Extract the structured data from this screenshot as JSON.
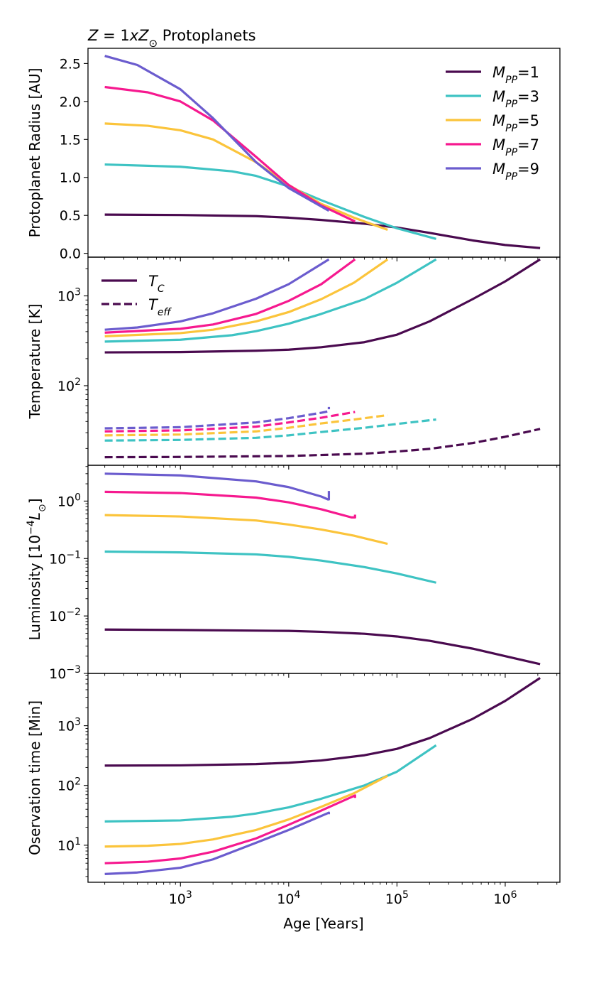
{
  "figure": {
    "title": "Z = 1xZ⊙ Protoplanets",
    "title_parts": {
      "z": "Z",
      "eq": " = 1",
      "x": "x",
      "zsun": "Z",
      "sun": "⊙",
      "rest": " Protoplanets"
    },
    "xlabel": "Age [Years]",
    "x_scale": "log",
    "xlim": [
      140,
      3200000
    ],
    "x_ticks": [
      1000,
      10000,
      100000,
      1000000
    ],
    "x_tick_labels": [
      {
        "base": "10",
        "exp": "3"
      },
      {
        "base": "10",
        "exp": "4"
      },
      {
        "base": "10",
        "exp": "5"
      },
      {
        "base": "10",
        "exp": "6"
      }
    ]
  },
  "colors": {
    "M1": "#4a0a4f",
    "M3": "#3ec3c3",
    "M5": "#fbc43b",
    "M7": "#f6198f",
    "M9": "#6b5cce"
  },
  "chart_data": [
    {
      "type": "line",
      "id": "radius",
      "ylabel": "Protoplanet Radius [AU]",
      "y_scale": "linear",
      "ylim": [
        -0.05,
        2.7
      ],
      "y_ticks": [
        0.0,
        0.5,
        1.0,
        1.5,
        2.0,
        2.5
      ],
      "y_tick_labels": [
        "0.0",
        "0.5",
        "1.0",
        "1.5",
        "2.0",
        "2.5"
      ],
      "legend": {
        "placement": "top-right",
        "entries": [
          {
            "label_base": "M",
            "label_sub": "PP",
            "label_val": "=1",
            "color_key": "M1"
          },
          {
            "label_base": "M",
            "label_sub": "PP",
            "label_val": "=3",
            "color_key": "M3"
          },
          {
            "label_base": "M",
            "label_sub": "PP",
            "label_val": "=5",
            "color_key": "M5"
          },
          {
            "label_base": "M",
            "label_sub": "PP",
            "label_val": "=7",
            "color_key": "M7"
          },
          {
            "label_base": "M",
            "label_sub": "PP",
            "label_val": "=9",
            "color_key": "M9"
          }
        ]
      },
      "series": [
        {
          "name": "M_PP=1",
          "color_key": "M1",
          "style": "solid",
          "x": [
            200,
            1000,
            5000,
            10000,
            20000,
            50000,
            100000,
            200000,
            500000,
            1000000,
            2100000
          ],
          "y": [
            0.51,
            0.505,
            0.49,
            0.47,
            0.44,
            0.39,
            0.34,
            0.27,
            0.17,
            0.11,
            0.07
          ]
        },
        {
          "name": "M_PP=3",
          "color_key": "M3",
          "style": "solid",
          "x": [
            200,
            1000,
            3000,
            5000,
            10000,
            20000,
            50000,
            100000,
            230000
          ],
          "y": [
            1.17,
            1.14,
            1.08,
            1.02,
            0.88,
            0.7,
            0.48,
            0.33,
            0.19
          ]
        },
        {
          "name": "M_PP=5",
          "color_key": "M5",
          "style": "solid",
          "x": [
            200,
            500,
            1000,
            2000,
            5000,
            10000,
            20000,
            40000,
            82000
          ],
          "y": [
            1.71,
            1.68,
            1.62,
            1.5,
            1.2,
            0.9,
            0.65,
            0.47,
            0.31
          ]
        },
        {
          "name": "M_PP=7",
          "color_key": "M7",
          "style": "solid",
          "x": [
            200,
            500,
            1000,
            2000,
            5000,
            10000,
            20000,
            41000
          ],
          "y": [
            2.19,
            2.12,
            2.0,
            1.75,
            1.27,
            0.9,
            0.63,
            0.42
          ]
        },
        {
          "name": "M_PP=9",
          "color_key": "M9",
          "style": "solid",
          "x": [
            200,
            400,
            1000,
            2000,
            5000,
            10000,
            23500
          ],
          "y": [
            2.6,
            2.48,
            2.16,
            1.78,
            1.2,
            0.86,
            0.56
          ]
        }
      ]
    },
    {
      "type": "line",
      "id": "temperature",
      "ylabel": "Temperature [K]",
      "y_scale": "log",
      "ylim": [
        13,
        2700
      ],
      "y_ticks": [
        100,
        1000
      ],
      "y_tick_labels": [
        {
          "base": "10",
          "exp": "2"
        },
        {
          "base": "10",
          "exp": "3"
        }
      ],
      "legend": {
        "placement": "top-left",
        "entries": [
          {
            "label_base": "T",
            "label_sub": "C",
            "style": "solid"
          },
          {
            "label_base": "T",
            "label_sub": "eff",
            "style": "dashed"
          }
        ]
      },
      "series": [
        {
          "name": "T_C M_PP=1",
          "color_key": "M1",
          "style": "solid",
          "x": [
            200,
            1000,
            5000,
            10000,
            20000,
            50000,
            100000,
            200000,
            500000,
            1000000,
            2100000
          ],
          "y": [
            235,
            237,
            245,
            252,
            268,
            305,
            370,
            520,
            920,
            1450,
            2550
          ]
        },
        {
          "name": "T_C M_PP=3",
          "color_key": "M3",
          "style": "solid",
          "x": [
            200,
            1000,
            3000,
            5000,
            10000,
            20000,
            50000,
            100000,
            230000
          ],
          "y": [
            310,
            325,
            365,
            405,
            490,
            630,
            920,
            1400,
            2550
          ]
        },
        {
          "name": "T_C M_PP=5",
          "color_key": "M5",
          "style": "solid",
          "x": [
            200,
            1000,
            2000,
            5000,
            10000,
            20000,
            40000,
            82000
          ],
          "y": [
            355,
            385,
            420,
            520,
            660,
            920,
            1400,
            2550
          ]
        },
        {
          "name": "T_C M_PP=7",
          "color_key": "M7",
          "style": "solid",
          "x": [
            200,
            1000,
            2000,
            5000,
            10000,
            20000,
            41000
          ],
          "y": [
            390,
            430,
            480,
            630,
            880,
            1350,
            2550
          ]
        },
        {
          "name": "T_C M_PP=9",
          "color_key": "M9",
          "style": "solid",
          "x": [
            200,
            400,
            1000,
            2000,
            5000,
            10000,
            23500
          ],
          "y": [
            420,
            445,
            520,
            640,
            930,
            1350,
            2550
          ]
        },
        {
          "name": "T_eff M_PP=1",
          "color_key": "M1",
          "style": "dashed",
          "x": [
            200,
            1000,
            10000,
            50000,
            100000,
            200000,
            500000,
            1000000,
            2100000
          ],
          "y": [
            16.0,
            16.1,
            16.5,
            17.5,
            18.5,
            19.8,
            23,
            27,
            33
          ]
        },
        {
          "name": "T_eff M_PP=3",
          "color_key": "M3",
          "style": "dashed",
          "x": [
            200,
            1000,
            5000,
            10000,
            20000,
            50000,
            100000,
            230000
          ],
          "y": [
            24.5,
            24.9,
            26.3,
            28,
            30.5,
            34,
            37.5,
            42
          ]
        },
        {
          "name": "T_eff M_PP=5",
          "color_key": "M5",
          "style": "dashed",
          "x": [
            200,
            1000,
            5000,
            10000,
            20000,
            40000,
            82000
          ],
          "y": [
            28,
            28.6,
            31,
            34,
            38,
            42,
            47
          ]
        },
        {
          "name": "T_eff M_PP=7",
          "color_key": "M7",
          "style": "dashed",
          "x": [
            200,
            1000,
            5000,
            10000,
            20000,
            41000
          ],
          "y": [
            31,
            31.8,
            35,
            39,
            44,
            51
          ]
        },
        {
          "name": "T_eff M_PP=9",
          "color_key": "M9",
          "style": "dashed",
          "x": [
            200,
            1000,
            5000,
            10000,
            20000,
            23500,
            23500
          ],
          "y": [
            33.5,
            34.5,
            39,
            43.5,
            50,
            52,
            58
          ]
        }
      ]
    },
    {
      "type": "line",
      "id": "luminosity",
      "ylabel": "Luminosity [10⁻⁴L⊙]",
      "ylabel_parts": {
        "pre": "Luminosity [10",
        "exp": "−4",
        "l": "L",
        "sun": "⊙",
        "post": "]"
      },
      "y_scale": "log",
      "ylim": [
        0.001,
        4.2
      ],
      "y_ticks": [
        0.001,
        0.01,
        0.1,
        1
      ],
      "y_tick_labels": [
        {
          "base": "10",
          "exp": "−3"
        },
        {
          "base": "10",
          "exp": "−2"
        },
        {
          "base": "10",
          "exp": "−1"
        },
        {
          "base": "10",
          "exp": "0"
        }
      ],
      "series": [
        {
          "name": "M_PP=1",
          "color_key": "M1",
          "style": "solid",
          "x": [
            200,
            1000,
            10000,
            20000,
            50000,
            100000,
            200000,
            500000,
            1000000,
            2100000
          ],
          "y": [
            0.0058,
            0.0057,
            0.0055,
            0.0053,
            0.0049,
            0.0044,
            0.0037,
            0.0027,
            0.002,
            0.00145
          ]
        },
        {
          "name": "M_PP=3",
          "color_key": "M3",
          "style": "solid",
          "x": [
            200,
            1000,
            5000,
            10000,
            20000,
            50000,
            100000,
            230000
          ],
          "y": [
            0.132,
            0.128,
            0.118,
            0.107,
            0.092,
            0.071,
            0.055,
            0.038
          ]
        },
        {
          "name": "M_PP=5",
          "color_key": "M5",
          "style": "solid",
          "x": [
            200,
            1000,
            5000,
            10000,
            20000,
            40000,
            82000
          ],
          "y": [
            0.57,
            0.54,
            0.46,
            0.39,
            0.32,
            0.25,
            0.18
          ]
        },
        {
          "name": "M_PP=7",
          "color_key": "M7",
          "style": "solid",
          "x": [
            200,
            1000,
            5000,
            10000,
            20000,
            38000,
            41000,
            41000
          ],
          "y": [
            1.45,
            1.38,
            1.15,
            0.95,
            0.72,
            0.52,
            0.52,
            0.58
          ]
        },
        {
          "name": "M_PP=9",
          "color_key": "M9",
          "style": "solid",
          "x": [
            200,
            1000,
            5000,
            10000,
            20000,
            23000,
            23500,
            23500
          ],
          "y": [
            3.0,
            2.8,
            2.2,
            1.75,
            1.2,
            1.07,
            1.07,
            1.5
          ]
        }
      ]
    },
    {
      "type": "line",
      "id": "observation",
      "ylabel": "Oservation time [Min]",
      "y_scale": "log",
      "ylim": [
        2.4,
        7500
      ],
      "y_ticks": [
        10,
        100,
        1000
      ],
      "y_tick_labels": [
        {
          "base": "10",
          "exp": "1"
        },
        {
          "base": "10",
          "exp": "2"
        },
        {
          "base": "10",
          "exp": "3"
        }
      ],
      "series": [
        {
          "name": "M_PP=1",
          "color_key": "M1",
          "style": "solid",
          "x": [
            200,
            1000,
            5000,
            10000,
            20000,
            50000,
            100000,
            200000,
            500000,
            1000000,
            2100000
          ],
          "y": [
            215,
            217,
            228,
            240,
            262,
            320,
            410,
            620,
            1300,
            2600,
            6300
          ]
        },
        {
          "name": "M_PP=3",
          "color_key": "M3",
          "style": "solid",
          "x": [
            200,
            1000,
            3000,
            5000,
            10000,
            20000,
            50000,
            100000,
            230000
          ],
          "y": [
            25,
            26,
            30,
            34,
            43,
            60,
            100,
            170,
            470
          ]
        },
        {
          "name": "M_PP=5",
          "color_key": "M5",
          "style": "solid",
          "x": [
            200,
            500,
            1000,
            2000,
            5000,
            10000,
            20000,
            40000,
            82000
          ],
          "y": [
            9.5,
            9.8,
            10.5,
            12.5,
            18,
            27,
            44,
            74,
            145
          ]
        },
        {
          "name": "M_PP=7",
          "color_key": "M7",
          "style": "solid",
          "x": [
            200,
            500,
            1000,
            2000,
            5000,
            10000,
            20000,
            41000,
            41000
          ],
          "y": [
            5.0,
            5.3,
            6.0,
            7.8,
            13,
            22,
            38,
            68,
            62
          ]
        },
        {
          "name": "M_PP=9",
          "color_key": "M9",
          "style": "solid",
          "x": [
            200,
            400,
            1000,
            2000,
            5000,
            10000,
            23500,
            23500
          ],
          "y": [
            3.3,
            3.5,
            4.2,
            5.8,
            11,
            18,
            35,
            33
          ]
        }
      ]
    }
  ]
}
